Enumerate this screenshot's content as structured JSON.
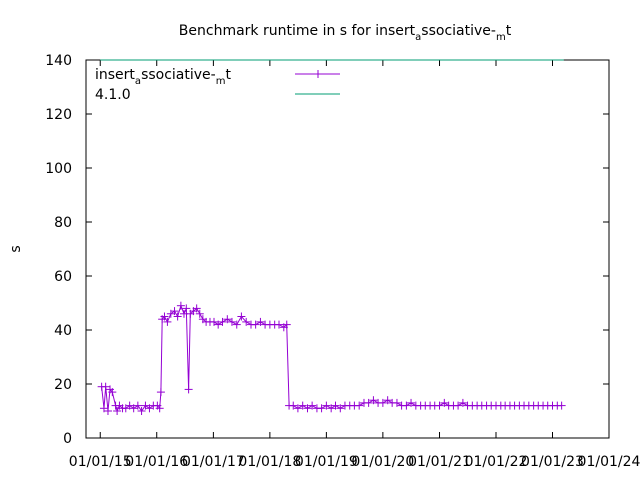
{
  "chart_data": {
    "type": "line",
    "title": {
      "pre": "Benchmark runtime in s for insert",
      "sub1": "a",
      "mid": "ssociative-",
      "sub2": "m",
      "post": "t"
    },
    "ylabel": "s",
    "xlabel": "",
    "ylim": [
      0,
      140
    ],
    "y_ticks": [
      "0",
      "20",
      "40",
      "60",
      "80",
      "100",
      "120",
      "140"
    ],
    "x_ticks": [
      "01/01/15",
      "01/01/16",
      "01/01/17",
      "01/01/18",
      "01/01/19",
      "01/01/20",
      "01/01/21",
      "01/01/22",
      "01/01/23",
      "01/01/24"
    ],
    "xlim": [
      "2014-10-01",
      "2024-01-01"
    ],
    "legend_position": "top-left",
    "grid": false,
    "series": [
      {
        "name": {
          "pre": "insert",
          "sub1": "a",
          "mid": "ssociative-",
          "sub2": "m",
          "post": "t"
        },
        "color": "#9400d3",
        "marker": "+",
        "points": [
          [
            "2015-01-10",
            19
          ],
          [
            "2015-01-25",
            11
          ],
          [
            "2015-02-05",
            19
          ],
          [
            "2015-02-20",
            10
          ],
          [
            "2015-03-05",
            18
          ],
          [
            "2015-03-20",
            17
          ],
          [
            "2015-04-10",
            12
          ],
          [
            "2015-04-20",
            10
          ],
          [
            "2015-05-05",
            12
          ],
          [
            "2015-05-25",
            11
          ],
          [
            "2015-06-15",
            11
          ],
          [
            "2015-07-10",
            12
          ],
          [
            "2015-08-05",
            11
          ],
          [
            "2015-09-01",
            12
          ],
          [
            "2015-09-25",
            10
          ],
          [
            "2015-10-20",
            12
          ],
          [
            "2015-11-15",
            11
          ],
          [
            "2015-12-10",
            12
          ],
          [
            "2016-01-05",
            12
          ],
          [
            "2016-01-20",
            11
          ],
          [
            "2016-01-28",
            17
          ],
          [
            "2016-02-05",
            44
          ],
          [
            "2016-02-20",
            45
          ],
          [
            "2016-03-10",
            43
          ],
          [
            "2016-04-01",
            46
          ],
          [
            "2016-04-25",
            47
          ],
          [
            "2016-05-15",
            45
          ],
          [
            "2016-06-05",
            49
          ],
          [
            "2016-06-25",
            46
          ],
          [
            "2016-07-10",
            48
          ],
          [
            "2016-07-25",
            18
          ],
          [
            "2016-08-05",
            46
          ],
          [
            "2016-08-25",
            47
          ],
          [
            "2016-09-15",
            48
          ],
          [
            "2016-10-05",
            46
          ],
          [
            "2016-10-25",
            44
          ],
          [
            "2016-11-15",
            43
          ],
          [
            "2016-12-10",
            43
          ],
          [
            "2017-01-05",
            43
          ],
          [
            "2017-02-01",
            42
          ],
          [
            "2017-03-01",
            43
          ],
          [
            "2017-04-01",
            44
          ],
          [
            "2017-05-01",
            43
          ],
          [
            "2017-06-01",
            42
          ],
          [
            "2017-07-01",
            45
          ],
          [
            "2017-08-01",
            43
          ],
          [
            "2017-09-01",
            42
          ],
          [
            "2017-10-01",
            42
          ],
          [
            "2017-11-01",
            43
          ],
          [
            "2017-12-01",
            42
          ],
          [
            "2018-01-01",
            42
          ],
          [
            "2018-02-01",
            42
          ],
          [
            "2018-03-01",
            42
          ],
          [
            "2018-04-01",
            41
          ],
          [
            "2018-04-20",
            42
          ],
          [
            "2018-05-05",
            12
          ],
          [
            "2018-06-01",
            12
          ],
          [
            "2018-07-01",
            11
          ],
          [
            "2018-08-01",
            12
          ],
          [
            "2018-09-01",
            11
          ],
          [
            "2018-10-01",
            12
          ],
          [
            "2018-11-01",
            11
          ],
          [
            "2018-12-01",
            11
          ],
          [
            "2019-01-01",
            12
          ],
          [
            "2019-02-01",
            11
          ],
          [
            "2019-03-01",
            12
          ],
          [
            "2019-04-01",
            11
          ],
          [
            "2019-05-01",
            12
          ],
          [
            "2019-06-01",
            12
          ],
          [
            "2019-07-01",
            12
          ],
          [
            "2019-08-01",
            12
          ],
          [
            "2019-09-01",
            13
          ],
          [
            "2019-10-01",
            13
          ],
          [
            "2019-11-01",
            14
          ],
          [
            "2019-12-01",
            13
          ],
          [
            "2020-01-01",
            13
          ],
          [
            "2020-02-01",
            14
          ],
          [
            "2020-03-01",
            13
          ],
          [
            "2020-04-01",
            13
          ],
          [
            "2020-05-01",
            12
          ],
          [
            "2020-06-01",
            12
          ],
          [
            "2020-07-01",
            13
          ],
          [
            "2020-08-01",
            12
          ],
          [
            "2020-09-01",
            12
          ],
          [
            "2020-10-01",
            12
          ],
          [
            "2020-11-01",
            12
          ],
          [
            "2020-12-01",
            12
          ],
          [
            "2021-01-01",
            12
          ],
          [
            "2021-02-01",
            13
          ],
          [
            "2021-03-01",
            12
          ],
          [
            "2021-04-01",
            12
          ],
          [
            "2021-05-01",
            12
          ],
          [
            "2021-06-01",
            13
          ],
          [
            "2021-07-01",
            12
          ],
          [
            "2021-08-01",
            12
          ],
          [
            "2021-09-01",
            12
          ],
          [
            "2021-10-01",
            12
          ],
          [
            "2021-11-01",
            12
          ],
          [
            "2021-12-01",
            12
          ],
          [
            "2022-01-01",
            12
          ],
          [
            "2022-02-01",
            12
          ],
          [
            "2022-03-01",
            12
          ],
          [
            "2022-04-01",
            12
          ],
          [
            "2022-05-01",
            12
          ],
          [
            "2022-06-01",
            12
          ],
          [
            "2022-07-01",
            12
          ],
          [
            "2022-08-01",
            12
          ],
          [
            "2022-09-01",
            12
          ],
          [
            "2022-10-01",
            12
          ],
          [
            "2022-11-01",
            12
          ],
          [
            "2022-12-01",
            12
          ],
          [
            "2023-01-01",
            12
          ],
          [
            "2023-02-01",
            12
          ],
          [
            "2023-03-01",
            12
          ]
        ]
      },
      {
        "name": "4.1.0",
        "color": "#009e73",
        "marker": "none",
        "points": [
          [
            "2015-01-01",
            140
          ],
          [
            "2023-03-15",
            140
          ]
        ]
      }
    ]
  }
}
